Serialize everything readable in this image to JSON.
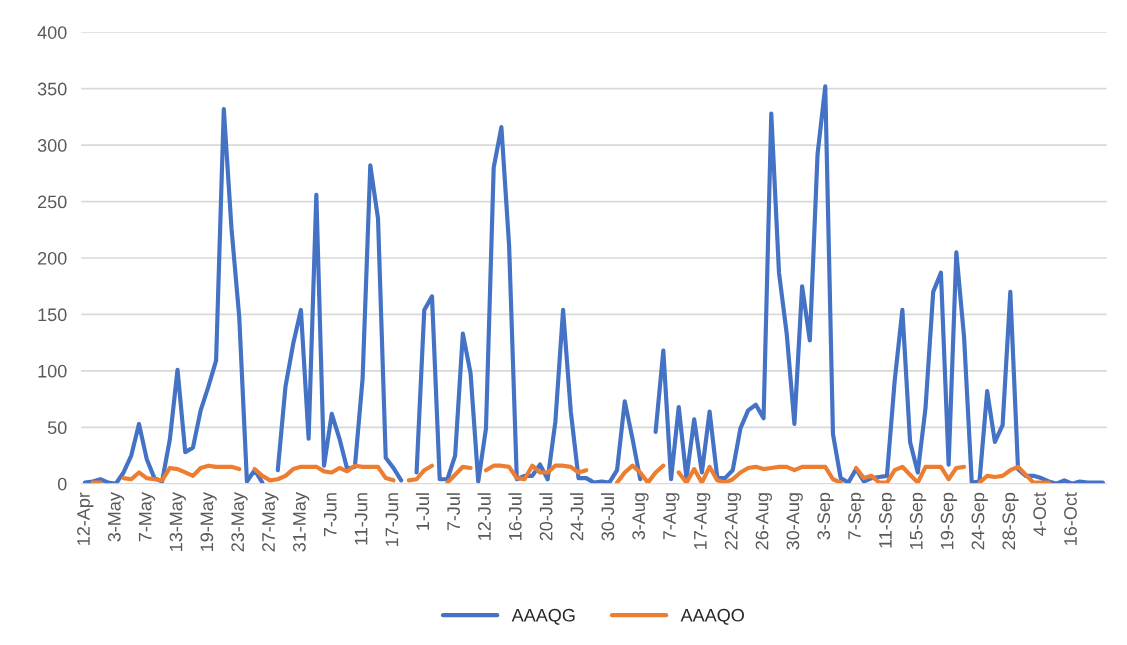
{
  "chart_data": {
    "type": "line",
    "categories": [
      "12-Apr",
      null,
      null,
      null,
      "3-May",
      null,
      null,
      null,
      "7-May",
      null,
      null,
      null,
      "13-May",
      null,
      null,
      null,
      "19-May",
      null,
      null,
      null,
      "23-May",
      null,
      null,
      null,
      "27-May",
      null,
      null,
      null,
      "31-May",
      null,
      null,
      null,
      "7-Jun",
      null,
      null,
      null,
      "11-Jun",
      null,
      null,
      null,
      "17-Jun",
      null,
      null,
      null,
      "1-Jul",
      null,
      null,
      null,
      "7-Jul",
      null,
      null,
      null,
      "12-Jul",
      null,
      null,
      null,
      "16-Jul",
      null,
      null,
      null,
      "20-Jul",
      null,
      null,
      null,
      "24-Jul",
      null,
      null,
      null,
      "30-Jul",
      null,
      null,
      null,
      "3-Aug",
      null,
      null,
      null,
      "7-Aug",
      null,
      null,
      null,
      "17-Aug",
      null,
      null,
      null,
      "22-Aug",
      null,
      null,
      null,
      "26-Aug",
      null,
      null,
      null,
      "30-Aug",
      null,
      null,
      null,
      "3-Sep",
      null,
      null,
      null,
      "7-Sep",
      null,
      null,
      null,
      "11-Sep",
      null,
      null,
      null,
      "15-Sep",
      null,
      null,
      null,
      "19-Sep",
      null,
      null,
      null,
      "24-Sep",
      null,
      null,
      null,
      "28-Sep",
      null,
      null,
      null,
      "4-Oct",
      null,
      null,
      null,
      "16-Oct",
      null,
      null,
      null,
      null
    ],
    "series": [
      {
        "name": "AAAQG",
        "color": "#4472c4",
        "values": [
          1,
          2,
          4,
          1,
          0,
          10,
          25,
          53,
          22,
          5,
          2,
          39,
          101,
          28,
          32,
          65,
          86,
          109,
          332,
          226,
          148,
          2,
          12,
          1,
          null,
          12,
          86,
          124,
          154,
          40,
          256,
          16,
          62,
          40,
          13,
          15,
          93,
          282,
          235,
          23,
          14,
          3,
          null,
          10,
          154,
          166,
          4,
          4,
          25,
          133,
          98,
          2,
          49,
          280,
          316,
          211,
          4,
          7,
          7,
          17,
          4,
          55,
          154,
          64,
          5,
          5,
          1,
          2,
          1,
          12,
          73,
          40,
          4,
          null,
          46,
          118,
          4,
          68,
          5,
          57,
          10,
          64,
          5,
          5,
          12,
          49,
          65,
          70,
          58,
          328,
          187,
          133,
          53,
          175,
          127,
          292,
          352,
          44,
          5,
          1,
          13,
          2,
          5,
          6,
          7,
          91,
          154,
          37,
          10,
          67,
          170,
          187,
          17,
          205,
          130,
          1,
          2,
          82,
          37,
          52,
          170,
          13,
          7,
          7,
          5,
          2,
          0,
          3,
          0,
          2,
          1,
          1,
          1
        ]
      },
      {
        "name": "AAAQO",
        "color": "#ed7d31",
        "values": [
          null,
          1,
          1,
          null,
          null,
          5,
          4,
          10,
          5,
          4,
          3,
          14,
          13,
          10,
          7,
          14,
          16,
          15,
          15,
          15,
          13,
          null,
          13,
          7,
          3,
          4,
          7,
          13,
          15,
          15,
          15,
          11,
          10,
          14,
          11,
          16,
          15,
          15,
          15,
          5,
          3,
          null,
          3,
          4,
          12,
          16,
          null,
          1,
          8,
          15,
          14,
          null,
          12,
          16,
          16,
          15,
          5,
          4,
          16,
          10,
          10,
          16,
          16,
          15,
          10,
          12,
          null,
          null,
          null,
          1,
          10,
          16,
          10,
          1,
          10,
          16,
          null,
          10,
          1,
          13,
          1,
          15,
          3,
          1,
          4,
          10,
          14,
          15,
          13,
          14,
          15,
          15,
          12,
          15,
          15,
          15,
          15,
          4,
          1,
          null,
          14,
          5,
          7,
          1,
          1,
          12,
          15,
          8,
          1,
          15,
          15,
          15,
          4,
          14,
          15,
          null,
          1,
          7,
          6,
          7,
          12,
          15,
          8,
          1,
          1,
          1,
          null,
          null,
          null,
          null,
          null,
          null,
          null
        ]
      }
    ],
    "ylim": [
      0,
      400
    ],
    "yticks": [
      0,
      50,
      100,
      150,
      200,
      250,
      300,
      350,
      400
    ],
    "grid": "y",
    "legend": "bottom",
    "marker": "none",
    "line_style": "solid"
  }
}
